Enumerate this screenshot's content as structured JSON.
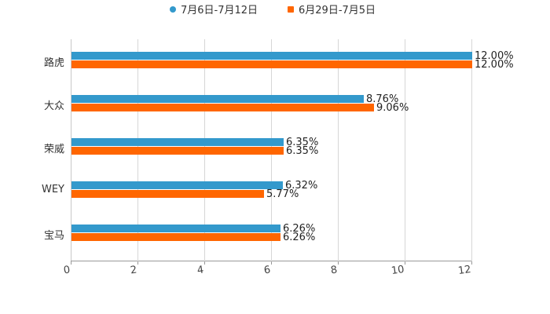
{
  "chart_data": {
    "type": "bar",
    "orientation": "horizontal",
    "title": "",
    "xlabel": "",
    "ylabel": "",
    "xlim": [
      0,
      12
    ],
    "x_ticks": [
      "0",
      "2",
      "4",
      "6",
      "8",
      "10",
      "12"
    ],
    "grid": true,
    "legend_position": "top",
    "categories": [
      "路虎",
      "大众",
      "荣威",
      "WEY",
      "宝马"
    ],
    "series": [
      {
        "name": "7月6日-7月12日",
        "color": "#3399cc",
        "values": [
          12.0,
          8.76,
          6.35,
          6.32,
          6.26
        ],
        "labels": [
          "12.00%",
          "8.76%",
          "6.35%",
          "6.32%",
          "6.26%"
        ]
      },
      {
        "name": "6月29日-7月5日",
        "color": "#ff6600",
        "values": [
          12.0,
          9.06,
          6.35,
          5.77,
          6.26
        ],
        "labels": [
          "12.00%",
          "9.06%",
          "6.35%",
          "5.77%",
          "6.26%"
        ]
      }
    ]
  },
  "legend": {
    "items": [
      {
        "label": "7月6日-7月12日",
        "color": "#3399cc"
      },
      {
        "label": "6月29日-7月5日",
        "color": "#ff6600"
      }
    ]
  }
}
